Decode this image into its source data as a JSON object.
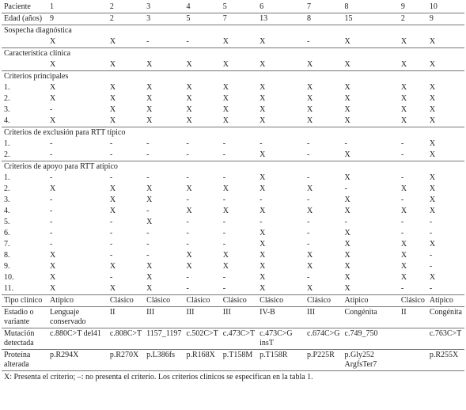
{
  "table": {
    "rows": [
      [
        "Paciente",
        "1",
        "2",
        "3",
        "4",
        "5",
        "6",
        "7",
        "8",
        "9",
        "10"
      ],
      [
        "Edad (años)",
        "9",
        "2",
        "3",
        "5",
        "7",
        "13",
        "8",
        "15",
        "2",
        "9"
      ],
      [
        "Sospecha diagnóstica"
      ],
      [
        "",
        "X",
        "X",
        "-",
        "-",
        "X",
        "X",
        "-",
        "X",
        "X",
        "X"
      ],
      [
        "Característica clínica"
      ],
      [
        "",
        "X",
        "X",
        "X",
        "X",
        "X",
        "X",
        "X",
        "X",
        "X",
        "X"
      ],
      [
        "Criterios principales"
      ],
      [
        "1.",
        "X",
        "X",
        "X",
        "X",
        "X",
        "X",
        "X",
        "X",
        "X",
        "X"
      ],
      [
        "2.",
        "X",
        "X",
        "X",
        "X",
        "X",
        "X",
        "X",
        "X",
        "X",
        "X"
      ],
      [
        "3.",
        "-",
        "X",
        "X",
        "X",
        "X",
        "X",
        "X",
        "X",
        "X",
        "X"
      ],
      [
        "4.",
        "X",
        "X",
        "X",
        "X",
        "X",
        "X",
        "X",
        "X",
        "X",
        "X"
      ],
      [
        "Criterios de exclusión para RTT típico"
      ],
      [
        "1.",
        "-",
        "-",
        "-",
        "-",
        "-",
        "-",
        "-",
        "-",
        "-",
        "X"
      ],
      [
        "2.",
        "-",
        "-",
        "-",
        "-",
        "-",
        "X",
        "-",
        "X",
        "-",
        "X"
      ],
      [
        "Criterios de apoyo para RTT atípico"
      ],
      [
        "1.",
        "-",
        "-",
        "-",
        "-",
        "-",
        "X",
        "-",
        "X",
        "-",
        "X"
      ],
      [
        "2.",
        "X",
        "X",
        "X",
        "X",
        "X",
        "X",
        "X",
        "-",
        "X",
        "X"
      ],
      [
        "3.",
        "-",
        "X",
        "X",
        "-",
        "-",
        "-",
        "-",
        "X",
        "-",
        "X"
      ],
      [
        "4.",
        "-",
        "X",
        "-",
        "X",
        "X",
        "X",
        "X",
        "X",
        "X",
        "X"
      ],
      [
        "5.",
        "-",
        "-",
        "X",
        "-",
        "-",
        "-",
        "-",
        "-",
        "-",
        "-"
      ],
      [
        "6.",
        "-",
        "-",
        "-",
        "-",
        "-",
        "X",
        "-",
        "X",
        "-",
        "-"
      ],
      [
        "7.",
        "-",
        "-",
        "-",
        "-",
        "-",
        "X",
        "-",
        "X",
        "X",
        "X"
      ],
      [
        "8.",
        "X",
        "-",
        "-",
        "X",
        "X",
        "X",
        "X",
        "X",
        "X",
        "-"
      ],
      [
        "9.",
        "X",
        "X",
        "X",
        "X",
        "X",
        "X",
        "X",
        "X",
        "X",
        "-"
      ],
      [
        "10.",
        "X",
        "-",
        "X",
        "-",
        "-",
        "X",
        "-",
        "X",
        "X",
        "X"
      ],
      [
        "11.",
        "X",
        "X",
        "X",
        "-",
        "-",
        "X",
        "X",
        "X",
        "-",
        "-"
      ],
      [
        "Tipo clínico",
        "Atípico",
        "Clásico",
        "Clásico",
        "Clásico",
        "Clásico",
        "Clásico",
        "Clásico",
        "Atípico",
        "Clásico",
        "Atípico"
      ],
      [
        "Estadio o variante",
        "Lenguaje conservado",
        "II",
        "III",
        "III",
        "III",
        "IV-B",
        "III",
        "Congénita",
        "II",
        "Congénita"
      ],
      [
        "Mutación detectada",
        "c.880C>T del41",
        "c.808C>T",
        "1157_1197",
        "c.502C>T",
        "c.473C>T",
        "c.473C>G insT",
        "c.674C>G",
        "c.749_750",
        "",
        "c.763C>T"
      ],
      [
        "Proteína alterada",
        "p.R294X",
        "p.R270X",
        "p.L386fs",
        "p.R168X",
        "p.T158M",
        "p.T158R",
        "p.P225R",
        "p.Gly252 ArgfsTer7",
        "",
        "p.R255X"
      ]
    ],
    "footnote": "X: Presenta el criterio; –: no presenta el criterio. Los criterios clínicos se especifican en la tabla 1."
  }
}
